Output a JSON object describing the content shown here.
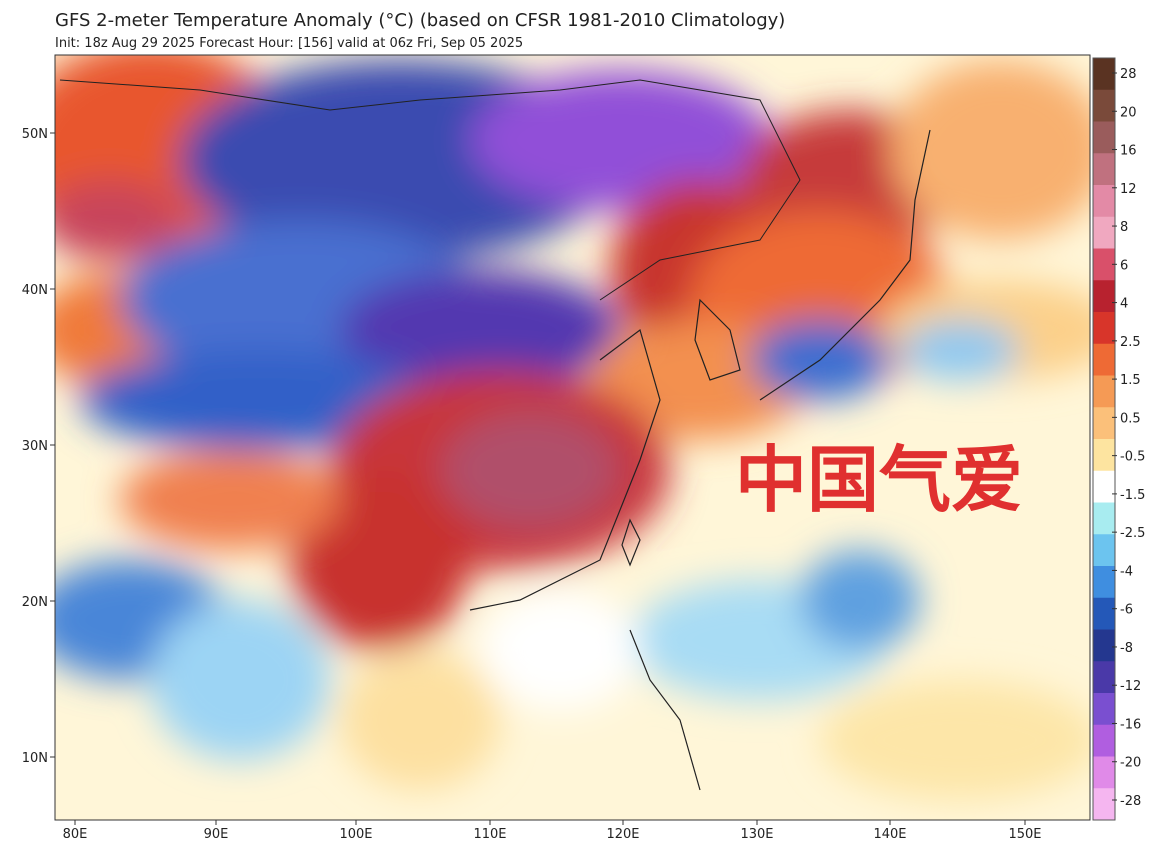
{
  "header": {
    "title": "GFS 2-meter Temperature Anomaly (°C) (based on CFSR 1981-2010 Climatology)",
    "subtitle": "Init: 18z Aug 29 2025   Forecast Hour: [156]   valid at 06z Fri, Sep 05 2025"
  },
  "map": {
    "lat_labels": [
      "50N",
      "40N",
      "30N",
      "20N",
      "10N"
    ],
    "lon_labels": [
      "80E",
      "90E",
      "100E",
      "110E",
      "120E",
      "130E",
      "140E",
      "150E"
    ]
  },
  "colorbar": {
    "labels": [
      "28",
      "20",
      "16",
      "12",
      "8",
      "6",
      "4",
      "2.5",
      "1.5",
      "0.5",
      "-0.5",
      "-1.5",
      "-2.5",
      "-4",
      "-6",
      "-8",
      "-12",
      "-16",
      "-20",
      "-28"
    ],
    "colors": [
      "#5a3322",
      "#7a4a3a",
      "#9a5c5c",
      "#c0717f",
      "#e38aa6",
      "#f0a8c0",
      "#d9506a",
      "#b8222f",
      "#d8352a",
      "#ee6a35",
      "#f59a55",
      "#fbc07a",
      "#fde4a0",
      "#ffffff",
      "#a8ecf0",
      "#6cc4ef",
      "#3f8ee0",
      "#2458b8",
      "#24378f",
      "#4a39a8",
      "#7a4fd0",
      "#b05ee0",
      "#e08ae8",
      "#f5b6f0"
    ]
  },
  "watermark": "中国气爱"
}
